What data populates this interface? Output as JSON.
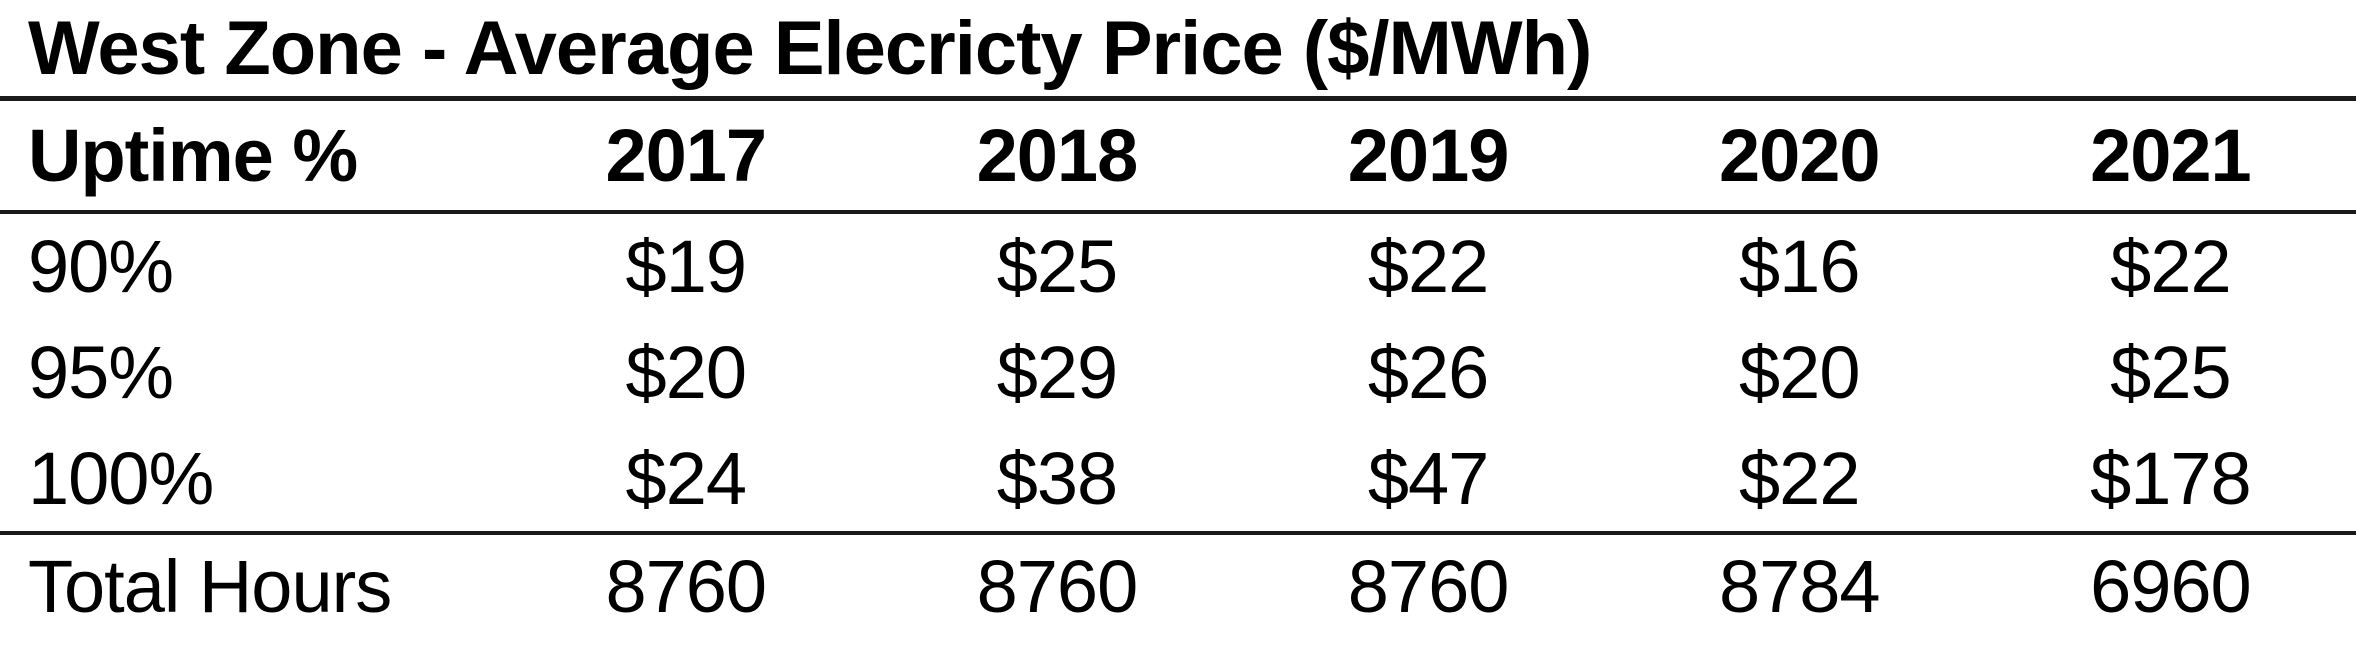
{
  "chart_data": {
    "type": "table",
    "title": "West Zone - Average Elecricty Price ($/MWh)",
    "columns": [
      "Uptime %",
      "2017",
      "2018",
      "2019",
      "2020",
      "2021"
    ],
    "rows": [
      [
        "90%",
        "$19",
        "$25",
        "$22",
        "$16",
        "$22"
      ],
      [
        "95%",
        "$20",
        "$29",
        "$26",
        "$20",
        "$25"
      ],
      [
        "100%",
        "$24",
        "$38",
        "$47",
        "$22",
        "$178"
      ],
      [
        "Total Hours",
        "8760",
        "8760",
        "8760",
        "8784",
        "6960"
      ]
    ],
    "layout_hints": {
      "title_position": "top-left",
      "value_alignment": "center",
      "label_alignment": "left",
      "rules": [
        "below-title",
        "below-header",
        "above-total-row"
      ]
    }
  },
  "colors": {
    "text": "#000000",
    "rule": "#1a1a1a",
    "background": "#ffffff"
  }
}
